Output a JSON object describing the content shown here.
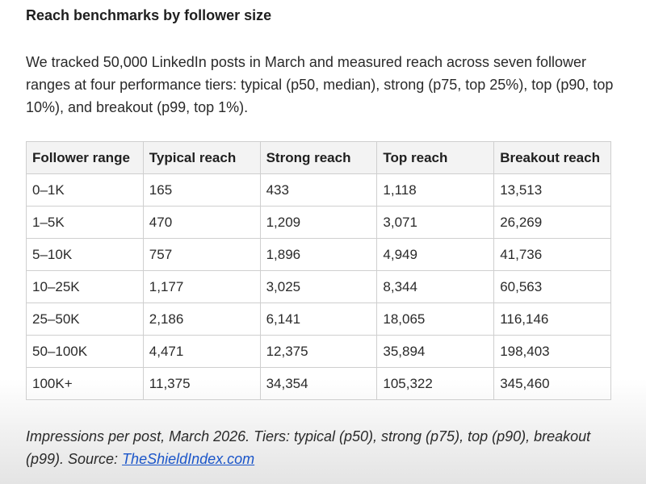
{
  "heading": "Reach benchmarks by follower size",
  "intro": "We tracked 50,000 LinkedIn posts in March and measured reach across seven follower ranges at four performance tiers: typical (p50, median), strong (p75, top 25%), top (p90, top 10%), and breakout (p99, top 1%).",
  "table": {
    "headers": [
      "Follower range",
      "Typical reach",
      "Strong reach",
      "Top reach",
      "Breakout reach"
    ],
    "rows": [
      [
        "0–1K",
        "165",
        "433",
        "1,118",
        "13,513"
      ],
      [
        "1–5K",
        "470",
        "1,209",
        "3,071",
        "26,269"
      ],
      [
        "5–10K",
        "757",
        "1,896",
        "4,949",
        "41,736"
      ],
      [
        "10–25K",
        "1,177",
        "3,025",
        "8,344",
        "60,563"
      ],
      [
        "25–50K",
        "2,186",
        "6,141",
        "18,065",
        "116,146"
      ],
      [
        "50–100K",
        "4,471",
        "12,375",
        "35,894",
        "198,403"
      ],
      [
        "100K+",
        "11,375",
        "34,354",
        "105,322",
        "345,460"
      ]
    ]
  },
  "caption": {
    "text": "Impressions per post, March 2026. Tiers: typical (p50), strong (p75), top (p90), breakout (p99). Source: ",
    "link_text": "TheShieldIndex.com",
    "link_color": "#1a55c9"
  }
}
